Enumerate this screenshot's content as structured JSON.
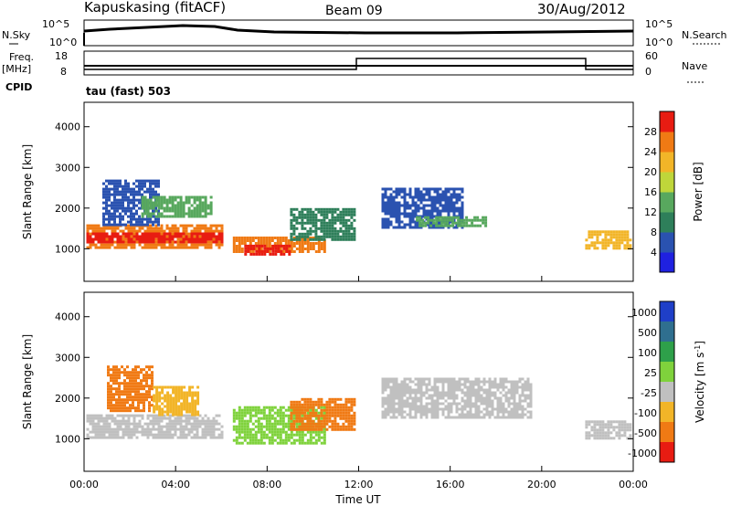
{
  "header": {
    "site": "Kapuskasing (fitACF)",
    "beam": "Beam 09",
    "date": "30/Aug/2012"
  },
  "noise_panel": {
    "left_label": "N.Sky",
    "right_label": "N.Search",
    "left_ticks": [
      "10^5",
      "10^0"
    ],
    "right_ticks": [
      "10^5",
      "10^0"
    ]
  },
  "freq_panel": {
    "left_label_top": "Freq.",
    "left_label_bottom": "[MHz]",
    "right_label": "Nave",
    "left_ticks": [
      "18",
      "8"
    ],
    "right_ticks": [
      "60",
      "0"
    ],
    "cpid_label": "CPID",
    "cpid_text": "tau (fast) 503"
  },
  "x_axis": {
    "label": "Time UT",
    "ticks": [
      "00:00",
      "04:00",
      "08:00",
      "12:00",
      "16:00",
      "20:00",
      "00:00"
    ]
  },
  "chart_data": [
    {
      "type": "heatmap",
      "name": "power",
      "ylabel": "Slant Range [km]",
      "y_ticks": [
        "1000",
        "2000",
        "3000",
        "4000"
      ],
      "xlim_hours": [
        0,
        24
      ],
      "ylim_km": [
        200,
        4600
      ],
      "colorbar_label": "Power [dB]",
      "colorbar_ticks": [
        "4",
        "8",
        "12",
        "16",
        "20",
        "24",
        "28"
      ],
      "colorbar_colors": [
        "#1f21e0",
        "#2a52b0",
        "#2e7f5a",
        "#58a85e",
        "#bfd63a",
        "#f2b528",
        "#f07a14",
        "#e81c12"
      ],
      "regions": [
        {
          "t0": 0.1,
          "t1": 6.0,
          "r0": 1000,
          "r1": 1600,
          "color": "#f07a14"
        },
        {
          "t0": 0.1,
          "t1": 6.0,
          "r0": 1150,
          "r1": 1400,
          "color": "#e81c12"
        },
        {
          "t0": 0.8,
          "t1": 3.2,
          "r0": 1600,
          "r1": 2700,
          "color": "#2a52b0"
        },
        {
          "t0": 2.5,
          "t1": 5.5,
          "r0": 1800,
          "r1": 2300,
          "color": "#58a85e"
        },
        {
          "t0": 6.5,
          "t1": 10.5,
          "r0": 900,
          "r1": 1300,
          "color": "#f07a14"
        },
        {
          "t0": 7.0,
          "t1": 9.0,
          "r0": 850,
          "r1": 1100,
          "color": "#e81c12"
        },
        {
          "t0": 9.0,
          "t1": 11.8,
          "r0": 1200,
          "r1": 2000,
          "color": "#2e7f5a"
        },
        {
          "t0": 13.0,
          "t1": 16.5,
          "r0": 1500,
          "r1": 2500,
          "color": "#2a52b0"
        },
        {
          "t0": 14.5,
          "t1": 17.5,
          "r0": 1550,
          "r1": 1800,
          "color": "#58a85e"
        },
        {
          "t0": 21.9,
          "t1": 23.9,
          "r0": 1000,
          "r1": 1450,
          "color": "#f2b528"
        }
      ]
    },
    {
      "type": "heatmap",
      "name": "velocity",
      "ylabel": "Slant Range [km]",
      "y_ticks": [
        "1000",
        "2000",
        "3000",
        "4000"
      ],
      "xlim_hours": [
        0,
        24
      ],
      "ylim_km": [
        200,
        4600
      ],
      "colorbar_label": "Velocity [m s",
      "colorbar_superscript": "-1",
      "colorbar_label_end": "]",
      "colorbar_ticks": [
        "1000",
        "500",
        "100",
        "25",
        "-25",
        "-100",
        "-500",
        "-1000"
      ],
      "colorbar_colors": [
        "#1f3fc8",
        "#2f6f8f",
        "#2ea04a",
        "#7fd23c",
        "#c0c0c0",
        "#f2b528",
        "#f07a14",
        "#e81c12"
      ],
      "regions": [
        {
          "t0": 0.1,
          "t1": 6.0,
          "r0": 1000,
          "r1": 1600,
          "color": "#c0c0c0"
        },
        {
          "t0": 1.0,
          "t1": 3.0,
          "r0": 1700,
          "r1": 2800,
          "color": "#f07a14"
        },
        {
          "t0": 3.0,
          "t1": 5.0,
          "r0": 1600,
          "r1": 2300,
          "color": "#f2b528"
        },
        {
          "t0": 6.5,
          "t1": 10.5,
          "r0": 900,
          "r1": 1800,
          "color": "#7fd23c"
        },
        {
          "t0": 9.0,
          "t1": 11.8,
          "r0": 1200,
          "r1": 2000,
          "color": "#f07a14"
        },
        {
          "t0": 13.0,
          "t1": 19.5,
          "r0": 1500,
          "r1": 2500,
          "color": "#c0c0c0"
        },
        {
          "t0": 21.9,
          "t1": 23.9,
          "r0": 1000,
          "r1": 1450,
          "color": "#c0c0c0"
        }
      ]
    }
  ]
}
